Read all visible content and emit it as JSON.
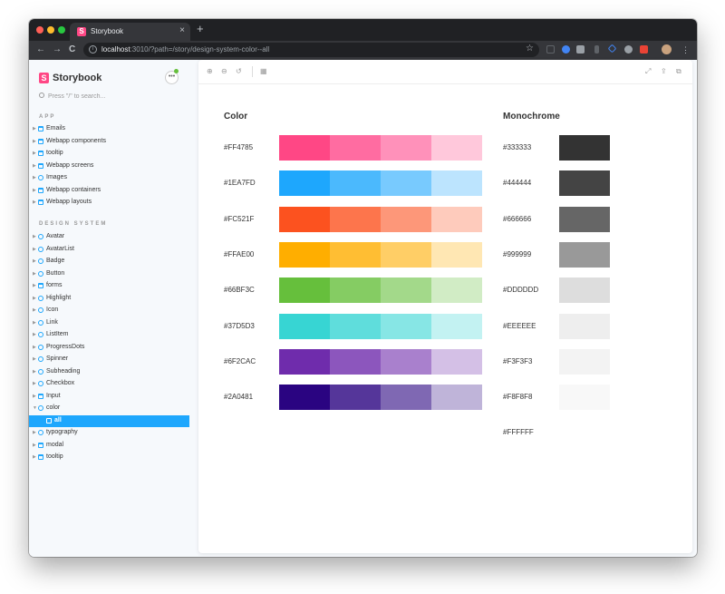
{
  "browser": {
    "tab_title": "Storybook",
    "tab_close": "×",
    "new_tab": "+",
    "url_host": "localhost",
    "url_rest": ":3010/?path=/story/design-system-color--all",
    "back": "←",
    "forward": "→",
    "reload": "C",
    "info": "i",
    "star": "☆"
  },
  "sidebar": {
    "brand_logo": "S",
    "brand_name": "Storybook",
    "menu": "•••",
    "search_placeholder": "Press \"/\" to search...",
    "app_heading": "APP",
    "app_items": [
      {
        "label": "Emails",
        "icon": "folder-icon"
      },
      {
        "label": "Webapp components",
        "icon": "folder-icon"
      },
      {
        "label": "tooltip",
        "icon": "folder-icon"
      },
      {
        "label": "Webapp screens",
        "icon": "folder-icon"
      },
      {
        "label": "Images",
        "icon": "component-icon"
      },
      {
        "label": "Webapp containers",
        "icon": "folder-icon"
      },
      {
        "label": "Webapp layouts",
        "icon": "folder-icon"
      }
    ],
    "ds_heading": "DESIGN SYSTEM",
    "ds_items": [
      {
        "label": "Avatar",
        "icon": "component-icon"
      },
      {
        "label": "AvatarList",
        "icon": "component-icon"
      },
      {
        "label": "Badge",
        "icon": "component-icon"
      },
      {
        "label": "Button",
        "icon": "component-icon"
      },
      {
        "label": "forms",
        "icon": "folder-icon"
      },
      {
        "label": "Highlight",
        "icon": "component-icon"
      },
      {
        "label": "Icon",
        "icon": "component-icon"
      },
      {
        "label": "Link",
        "icon": "component-icon"
      },
      {
        "label": "ListItem",
        "icon": "component-icon"
      },
      {
        "label": "ProgressDots",
        "icon": "component-icon"
      },
      {
        "label": "Spinner",
        "icon": "component-icon"
      },
      {
        "label": "Subheading",
        "icon": "component-icon"
      },
      {
        "label": "Checkbox",
        "icon": "component-icon"
      },
      {
        "label": "Input",
        "icon": "folder-icon"
      },
      {
        "label": "color",
        "icon": "component-icon",
        "expanded": true
      },
      {
        "label": "all",
        "icon": "story-icon",
        "selected": true
      },
      {
        "label": "typography",
        "icon": "component-icon"
      },
      {
        "label": "modal",
        "icon": "folder-icon"
      },
      {
        "label": "tooltip",
        "icon": "folder-icon"
      }
    ]
  },
  "toolbar": {
    "zoom_in": "⊕",
    "zoom_out": "⊖",
    "zoom_reset": "↺",
    "grid": "▦",
    "fullscreen": "⤢",
    "share": "⇪",
    "copy": "⧉"
  },
  "color_section": {
    "title": "Color",
    "rows": [
      {
        "label": "#FF4785",
        "shades": [
          "#FF4785",
          "#FF6CA1",
          "#FF91BA",
          "#FFC8DB"
        ]
      },
      {
        "label": "#1EA7FD",
        "shades": [
          "#1EA7FD",
          "#4BB9FD",
          "#78CAFE",
          "#BCE4FE"
        ]
      },
      {
        "label": "#FC521F",
        "shades": [
          "#FC521F",
          "#FD754C",
          "#FD9779",
          "#FECBBC"
        ]
      },
      {
        "label": "#FFAE00",
        "shades": [
          "#FFAE00",
          "#FFBE33",
          "#FFCE66",
          "#FFE7B3"
        ]
      },
      {
        "label": "#66BF3C",
        "shades": [
          "#66BF3C",
          "#85CC63",
          "#A3D98A",
          "#D1ECC5"
        ]
      },
      {
        "label": "#37D5D3",
        "shades": [
          "#37D5D3",
          "#5FDDDC",
          "#87E6E5",
          "#C3F2F2"
        ]
      },
      {
        "label": "#6F2CAC",
        "shades": [
          "#6F2CAC",
          "#8C56BD",
          "#A980CD",
          "#D4C0E6"
        ]
      },
      {
        "label": "#2A0481",
        "shades": [
          "#2A0481",
          "#55369A",
          "#7F68B3",
          "#BFB4D9"
        ]
      }
    ]
  },
  "mono_section": {
    "title": "Monochrome",
    "rows": [
      {
        "label": "#333333",
        "color": "#333333"
      },
      {
        "label": "#444444",
        "color": "#444444"
      },
      {
        "label": "#666666",
        "color": "#666666"
      },
      {
        "label": "#999999",
        "color": "#999999"
      },
      {
        "label": "#DDDDDD",
        "color": "#DDDDDD"
      },
      {
        "label": "#EEEEEE",
        "color": "#EEEEEE"
      },
      {
        "label": "#F3F3F3",
        "color": "#F3F3F3"
      },
      {
        "label": "#F8F8F8",
        "color": "#F8F8F8"
      },
      {
        "label": "#FFFFFF",
        "color": "#FFFFFF"
      }
    ]
  }
}
